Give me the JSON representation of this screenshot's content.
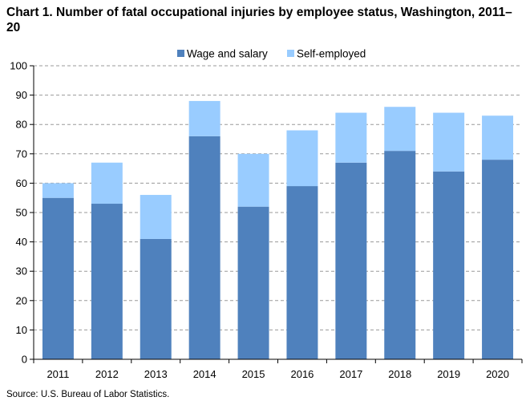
{
  "title": "Chart 1. Number of fatal occupational injuries by employee status, Washington, 2011–20",
  "source": "Source: U.S. Bureau of Labor Statistics.",
  "chart_data": {
    "type": "bar",
    "stacked": true,
    "title": "Chart 1. Number of fatal occupational injuries by employee status, Washington, 2011–20",
    "categories": [
      "2011",
      "2012",
      "2013",
      "2014",
      "2015",
      "2016",
      "2017",
      "2018",
      "2019",
      "2020"
    ],
    "series": [
      {
        "name": "Wage and salary",
        "color": "#4f81bd",
        "values": [
          55,
          53,
          41,
          76,
          52,
          59,
          67,
          71,
          64,
          68
        ]
      },
      {
        "name": "Self-employed",
        "color": "#99ccff",
        "values": [
          5,
          14,
          15,
          12,
          18,
          19,
          17,
          15,
          20,
          15
        ]
      }
    ],
    "ylim": [
      0,
      100
    ],
    "yticks": [
      0,
      10,
      20,
      30,
      40,
      50,
      60,
      70,
      80,
      90,
      100
    ],
    "grid": true,
    "legend": "top-center"
  }
}
